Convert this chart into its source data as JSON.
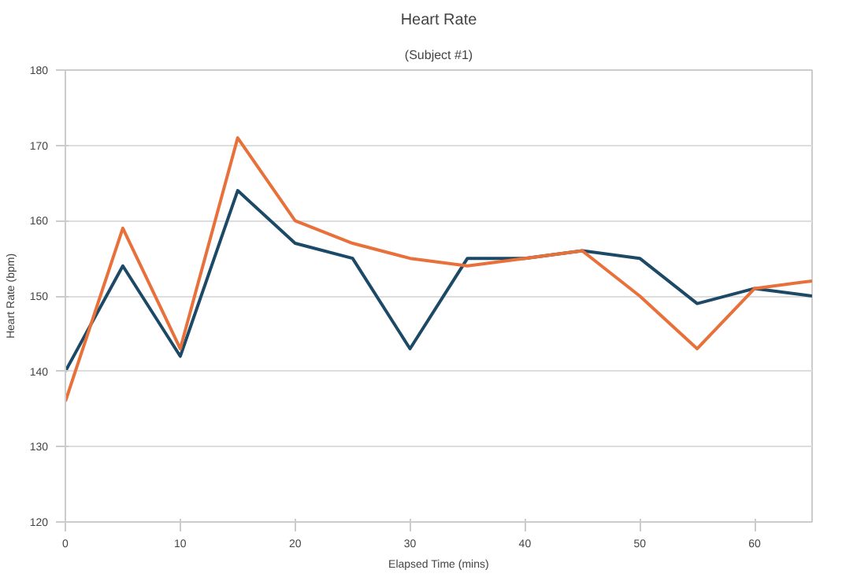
{
  "chart_data": {
    "type": "line",
    "title": "Heart Rate",
    "subtitle": "(Subject #1)",
    "xlabel": "Elapsed Time (mins)",
    "ylabel": "Heart Rate (bpm)",
    "x": [
      0,
      5,
      10,
      15,
      20,
      25,
      30,
      35,
      40,
      45,
      50,
      55,
      60,
      65
    ],
    "series": [
      {
        "color": "#1c4966",
        "values": [
          140,
          154,
          142,
          164,
          157,
          155,
          143,
          155,
          155,
          156,
          155,
          149,
          151,
          150
        ]
      },
      {
        "color": "#e8703a",
        "values": [
          136,
          159,
          143,
          171,
          160,
          157,
          155,
          154,
          155,
          156,
          150,
          143,
          151,
          152
        ]
      }
    ],
    "xlim": [
      0,
      65
    ],
    "ylim": [
      120,
      180
    ],
    "xticks": [
      0,
      10,
      20,
      30,
      40,
      50,
      60
    ],
    "yticks": [
      120,
      130,
      140,
      150,
      160,
      170,
      180
    ],
    "grid": "y"
  }
}
